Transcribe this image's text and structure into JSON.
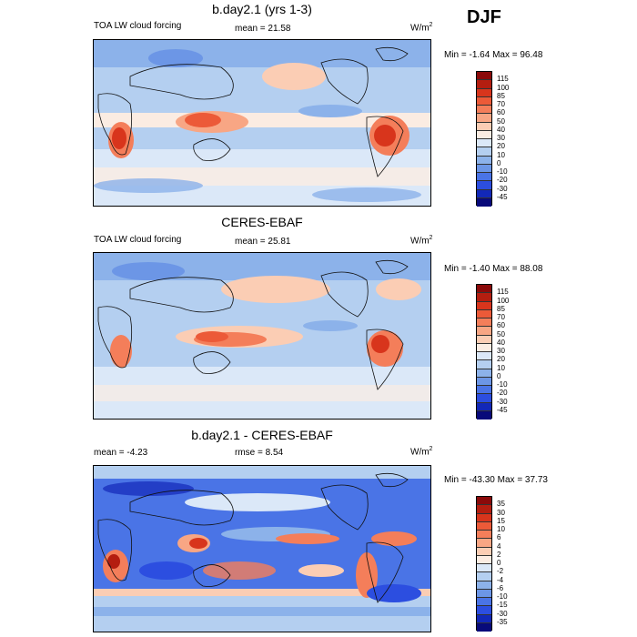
{
  "season": "DJF",
  "panels": [
    {
      "title": "b.day2.1 (yrs 1-3)",
      "left_label": "TOA LW cloud forcing",
      "stat_label": "mean =  21.58",
      "units_base": "W/m",
      "units_exp": "2",
      "minmax": "Min =  -1.64 Max =  96.48"
    },
    {
      "title": "CERES-EBAF",
      "left_label": "TOA LW cloud forcing",
      "stat_label": "mean =  25.81",
      "units_base": "W/m",
      "units_exp": "2",
      "minmax": "Min =  -1.40 Max =  88.08"
    },
    {
      "title": "b.day2.1 - CERES-EBAF",
      "left_label": "mean =  -4.23",
      "stat_label": "rmse =   8.54",
      "units_base": "W/m",
      "units_exp": "2",
      "minmax": "Min = -43.30 Max =  37.73"
    }
  ],
  "colorbars": {
    "absolute": {
      "labels": [
        "115",
        "100",
        "85",
        "70",
        "60",
        "50",
        "40",
        "30",
        "20",
        "10",
        "0",
        "-10",
        "-20",
        "-30",
        "-45"
      ],
      "colors": [
        "#8b0a0a",
        "#b41e10",
        "#d8351c",
        "#ec5a38",
        "#f47e5a",
        "#f8a684",
        "#fbcdb4",
        "#fbece2",
        "#dbe8f8",
        "#b4cff0",
        "#8cb2ea",
        "#6c96e6",
        "#4a74e6",
        "#2c4ee0",
        "#1228b8",
        "#080a7a"
      ]
    },
    "difference": {
      "labels": [
        "35",
        "30",
        "15",
        "10",
        "6",
        "4",
        "2",
        "0",
        "-2",
        "-4",
        "-6",
        "-10",
        "-15",
        "-30",
        "-35"
      ],
      "colors": [
        "#8b0a0a",
        "#b41e10",
        "#d8351c",
        "#ec5a38",
        "#f47e5a",
        "#f8a684",
        "#fbcdb4",
        "#fbece2",
        "#dbe8f8",
        "#b4cff0",
        "#8cb2ea",
        "#6c96e6",
        "#4a74e6",
        "#2c4ee0",
        "#1228b8",
        "#080a7a"
      ]
    }
  }
}
